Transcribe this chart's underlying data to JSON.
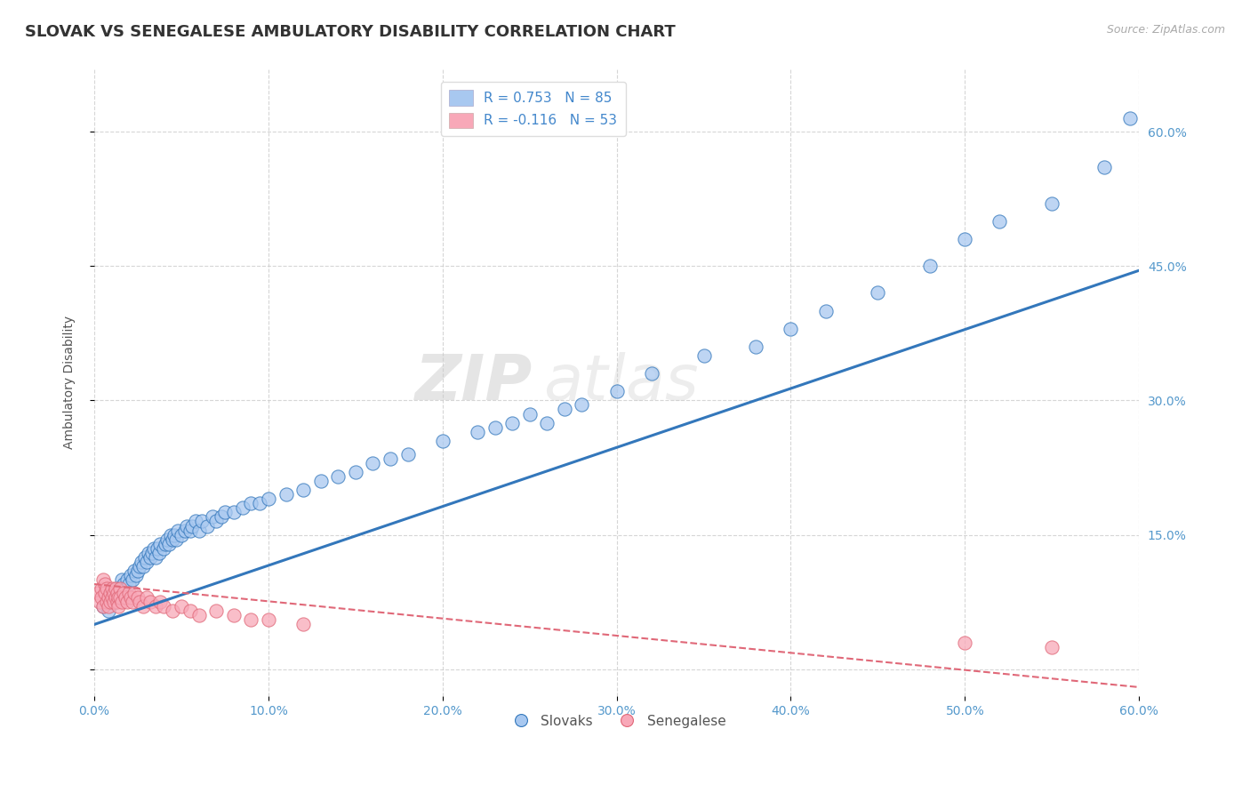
{
  "title": "SLOVAK VS SENEGALESE AMBULATORY DISABILITY CORRELATION CHART",
  "source": "Source: ZipAtlas.com",
  "ylabel": "Ambulatory Disability",
  "x_min": 0.0,
  "x_max": 0.6,
  "y_min": -0.03,
  "y_max": 0.67,
  "x_ticks": [
    0.0,
    0.1,
    0.2,
    0.3,
    0.4,
    0.5,
    0.6
  ],
  "x_tick_labels": [
    "0.0%",
    "10.0%",
    "20.0%",
    "30.0%",
    "40.0%",
    "50.0%",
    "60.0%"
  ],
  "y_ticks": [
    0.0,
    0.15,
    0.3,
    0.45,
    0.6
  ],
  "y_tick_labels": [
    "",
    "15.0%",
    "30.0%",
    "45.0%",
    "60.0%"
  ],
  "slovak_color": "#a8c8f0",
  "senegalese_color": "#f8a8b8",
  "trend_slovak_color": "#3377bb",
  "trend_senegalese_color": "#e06878",
  "background_color": "#ffffff",
  "grid_color": "#cccccc",
  "title_color": "#333333",
  "axis_label_color": "#4488cc",
  "tick_label_color": "#5599cc",
  "legend_R_slovak": "0.753",
  "legend_N_slovak": "85",
  "legend_R_senegalese": "-0.116",
  "legend_N_senegalese": "53",
  "watermark_text": "ZIPatlas",
  "slovak_x": [
    0.005,
    0.008,
    0.01,
    0.012,
    0.013,
    0.015,
    0.016,
    0.017,
    0.018,
    0.019,
    0.02,
    0.021,
    0.022,
    0.023,
    0.024,
    0.025,
    0.026,
    0.027,
    0.028,
    0.029,
    0.03,
    0.031,
    0.032,
    0.033,
    0.034,
    0.035,
    0.036,
    0.037,
    0.038,
    0.04,
    0.041,
    0.042,
    0.043,
    0.044,
    0.045,
    0.046,
    0.047,
    0.048,
    0.05,
    0.052,
    0.053,
    0.055,
    0.056,
    0.058,
    0.06,
    0.062,
    0.065,
    0.068,
    0.07,
    0.073,
    0.075,
    0.08,
    0.085,
    0.09,
    0.095,
    0.1,
    0.11,
    0.12,
    0.13,
    0.14,
    0.15,
    0.16,
    0.17,
    0.18,
    0.2,
    0.22,
    0.23,
    0.24,
    0.25,
    0.26,
    0.27,
    0.28,
    0.3,
    0.32,
    0.35,
    0.38,
    0.4,
    0.42,
    0.45,
    0.48,
    0.5,
    0.52,
    0.55,
    0.58,
    0.595
  ],
  "slovak_y": [
    0.07,
    0.065,
    0.08,
    0.075,
    0.09,
    0.085,
    0.1,
    0.095,
    0.09,
    0.1,
    0.095,
    0.105,
    0.1,
    0.11,
    0.105,
    0.11,
    0.115,
    0.12,
    0.115,
    0.125,
    0.12,
    0.13,
    0.125,
    0.13,
    0.135,
    0.125,
    0.135,
    0.13,
    0.14,
    0.135,
    0.14,
    0.145,
    0.14,
    0.15,
    0.145,
    0.15,
    0.145,
    0.155,
    0.15,
    0.155,
    0.16,
    0.155,
    0.16,
    0.165,
    0.155,
    0.165,
    0.16,
    0.17,
    0.165,
    0.17,
    0.175,
    0.175,
    0.18,
    0.185,
    0.185,
    0.19,
    0.195,
    0.2,
    0.21,
    0.215,
    0.22,
    0.23,
    0.235,
    0.24,
    0.255,
    0.265,
    0.27,
    0.275,
    0.285,
    0.275,
    0.29,
    0.295,
    0.31,
    0.33,
    0.35,
    0.36,
    0.38,
    0.4,
    0.42,
    0.45,
    0.48,
    0.5,
    0.52,
    0.56,
    0.615
  ],
  "senegalese_x": [
    0.002,
    0.003,
    0.004,
    0.004,
    0.005,
    0.005,
    0.006,
    0.006,
    0.007,
    0.007,
    0.008,
    0.008,
    0.009,
    0.009,
    0.01,
    0.01,
    0.011,
    0.011,
    0.012,
    0.012,
    0.013,
    0.013,
    0.014,
    0.014,
    0.015,
    0.015,
    0.016,
    0.017,
    0.018,
    0.019,
    0.02,
    0.021,
    0.022,
    0.023,
    0.025,
    0.026,
    0.028,
    0.03,
    0.032,
    0.035,
    0.038,
    0.04,
    0.045,
    0.05,
    0.055,
    0.06,
    0.07,
    0.08,
    0.09,
    0.1,
    0.12,
    0.5,
    0.55
  ],
  "senegalese_y": [
    0.085,
    0.075,
    0.09,
    0.08,
    0.1,
    0.07,
    0.095,
    0.085,
    0.075,
    0.09,
    0.08,
    0.07,
    0.085,
    0.075,
    0.09,
    0.08,
    0.075,
    0.085,
    0.08,
    0.09,
    0.075,
    0.085,
    0.08,
    0.07,
    0.09,
    0.08,
    0.075,
    0.085,
    0.08,
    0.075,
    0.085,
    0.08,
    0.075,
    0.085,
    0.08,
    0.075,
    0.07,
    0.08,
    0.075,
    0.07,
    0.075,
    0.07,
    0.065,
    0.07,
    0.065,
    0.06,
    0.065,
    0.06,
    0.055,
    0.055,
    0.05,
    0.03,
    0.025
  ],
  "trend_slovak_x0": 0.0,
  "trend_slovak_y0": 0.05,
  "trend_slovak_x1": 0.6,
  "trend_slovak_y1": 0.445,
  "trend_senegalese_x0": 0.0,
  "trend_senegalese_y0": 0.095,
  "trend_senegalese_x1": 0.6,
  "trend_senegalese_y1": -0.02
}
